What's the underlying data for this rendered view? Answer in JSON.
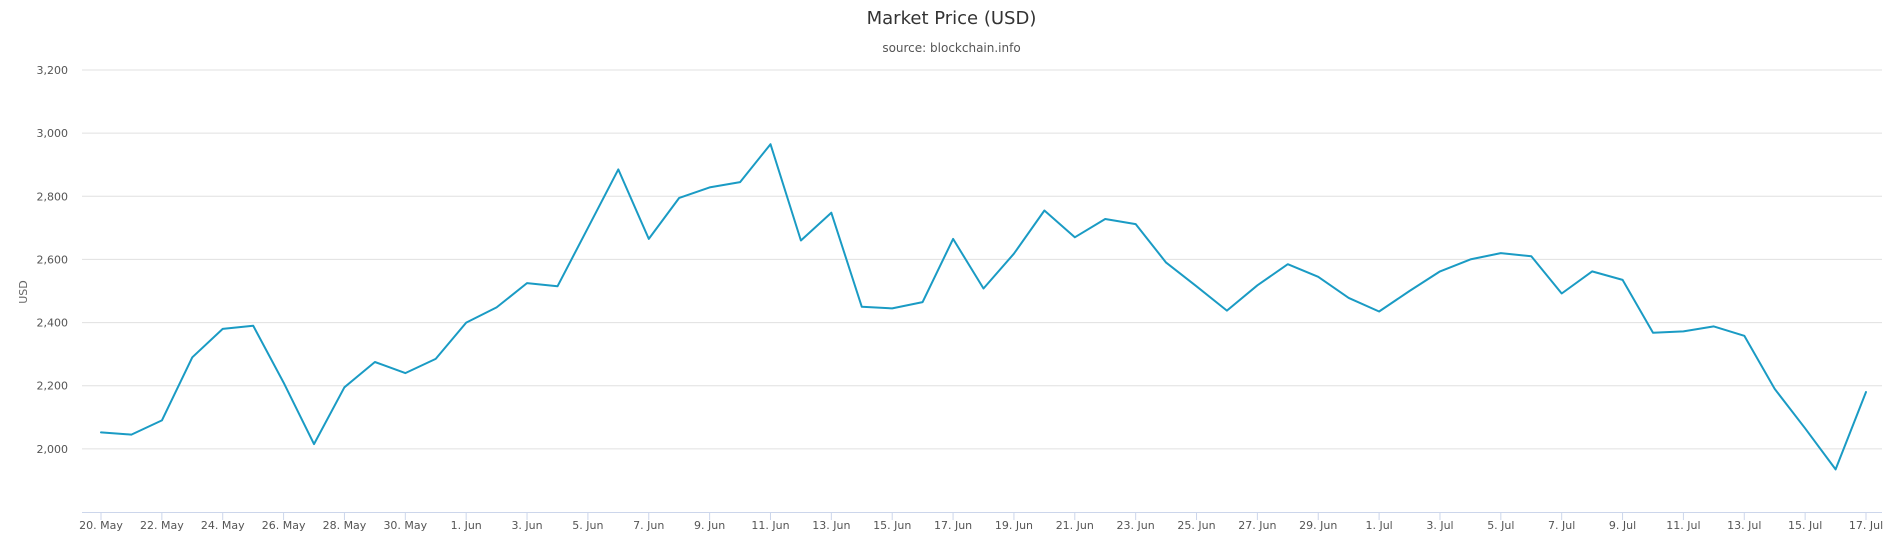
{
  "chart_data": {
    "type": "line",
    "title": "Market Price (USD)",
    "subtitle": "source: blockchain.info",
    "xlabel": "",
    "ylabel": "USD",
    "x_start": "2017-05-20",
    "x_step_days": 1,
    "x_ticks": [
      "20. May",
      "22. May",
      "24. May",
      "26. May",
      "28. May",
      "30. May",
      "1. Jun",
      "3. Jun",
      "5. Jun",
      "7. Jun",
      "9. Jun",
      "11. Jun",
      "13. Jun",
      "15. Jun",
      "17. Jun",
      "19. Jun",
      "21. Jun",
      "23. Jun",
      "25. Jun",
      "27. Jun",
      "29. Jun",
      "1. Jul",
      "3. Jul",
      "5. Jul",
      "7. Jul",
      "9. Jul",
      "11. Jul",
      "13. Jul",
      "15. Jul",
      "17. Jul"
    ],
    "y_ticks": [
      "2,000",
      "2,200",
      "2,400",
      "2,600",
      "2,800",
      "3,000",
      "3,200"
    ],
    "y_tick_values": [
      2000,
      2200,
      2400,
      2600,
      2800,
      3000,
      3200
    ],
    "ylim": [
      1800,
      3200
    ],
    "grid": true,
    "legend": "none",
    "series": [
      {
        "color": "#1a9bc4",
        "values": [
          2052,
          2045,
          2090,
          2290,
          2380,
          2390,
          2210,
          2015,
          2195,
          2275,
          2240,
          2285,
          2400,
          2448,
          2525,
          2515,
          2700,
          2885,
          2665,
          2795,
          2828,
          2845,
          2965,
          2660,
          2748,
          2450,
          2445,
          2465,
          2665,
          2508,
          2618,
          2755,
          2670,
          2728,
          2712,
          2590,
          2515,
          2438,
          2518,
          2585,
          2545,
          2478,
          2435,
          2500,
          2562,
          2600,
          2620,
          2610,
          2492,
          2562,
          2535,
          2368,
          2372,
          2388,
          2358,
          2190,
          2065,
          1935,
          2180
        ]
      }
    ]
  }
}
